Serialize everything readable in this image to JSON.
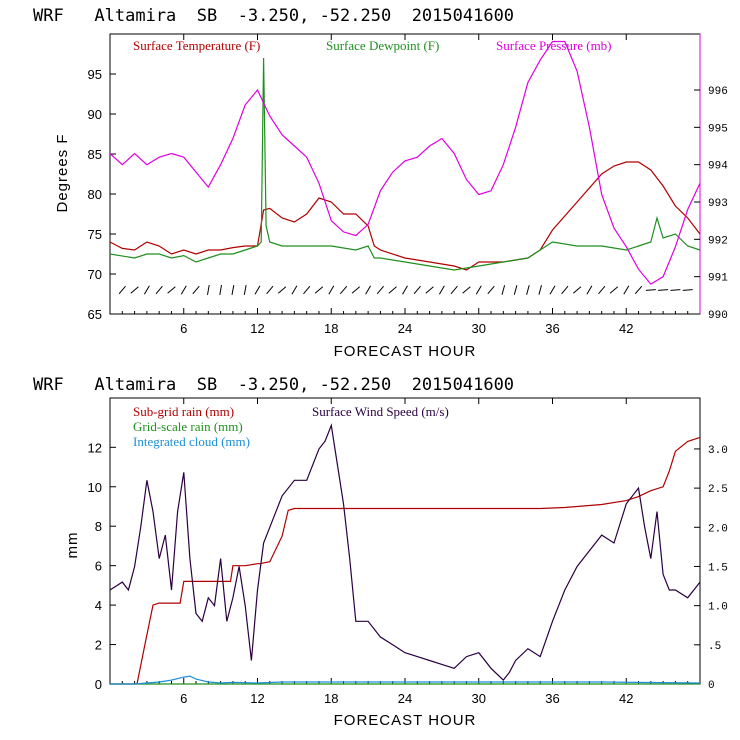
{
  "colors": {
    "temperature": "#b00000",
    "dewpoint": "#1f8f1f",
    "pressure": "#e000e0",
    "subgrid_rain": "#b00000",
    "gridscale_rain": "#1f8f1f",
    "cloud": "#1e8fd6",
    "wind": "#2a0040",
    "axis": "#000000"
  },
  "chart_data": [
    {
      "type": "line",
      "title": "WRF   Altamira  SB  -3.250, -52.250  2015041600",
      "xlabel": "FORECAST HOUR",
      "ylabel": "Degrees F",
      "xlim": [
        0,
        48
      ],
      "ylim": [
        65,
        100
      ],
      "y2lim": [
        990,
        997.5
      ],
      "xticks": [
        "6",
        "12",
        "18",
        "24",
        "30",
        "36",
        "42"
      ],
      "xtick_values": [
        6,
        12,
        18,
        24,
        30,
        36,
        42
      ],
      "yticks": [
        "65",
        "70",
        "75",
        "80",
        "85",
        "90",
        "95"
      ],
      "ytick_values": [
        65,
        70,
        75,
        80,
        85,
        90,
        95
      ],
      "y2ticks": [
        "990",
        "991",
        "992",
        "993",
        "994",
        "995",
        "996"
      ],
      "y2tick_values": [
        990,
        991,
        992,
        993,
        994,
        995,
        996
      ],
      "legend": [
        "Surface Temperature (F)",
        "Surface Dewpoint (F)",
        "Surface Pressure (mb)"
      ],
      "series": [
        {
          "name": "Surface Temperature (F)",
          "color_key": "temperature",
          "axis": "left",
          "x": [
            0,
            1,
            2,
            2.5,
            3,
            4,
            4.5,
            5,
            6,
            7,
            8,
            9,
            10,
            11,
            12,
            12.5,
            13,
            14,
            15,
            16,
            17,
            18,
            19,
            20,
            21,
            21.5,
            22,
            24,
            26,
            28,
            29,
            30,
            32,
            34,
            35,
            36,
            38,
            40,
            41,
            42,
            43,
            44,
            45,
            46,
            47,
            48
          ],
          "y": [
            74,
            73.2,
            73,
            73.5,
            74,
            73.5,
            73,
            72.5,
            73,
            72.5,
            73,
            73,
            73.3,
            73.5,
            73.5,
            78,
            78.2,
            77,
            76.5,
            77.5,
            79.5,
            79,
            77.5,
            77.5,
            76,
            73.5,
            73,
            72,
            71.5,
            71,
            70.5,
            71.5,
            71.5,
            72,
            73,
            75.5,
            79,
            82.5,
            83.5,
            84,
            84,
            83,
            81,
            78.5,
            77,
            75
          ]
        },
        {
          "name": "Surface Dewpoint (F)",
          "color_key": "dewpoint",
          "axis": "left",
          "x": [
            0,
            2,
            3,
            4,
            5,
            6,
            7,
            8,
            9,
            10,
            11,
            12,
            12.3,
            12.5,
            12.7,
            13,
            14,
            16,
            18,
            20,
            21,
            21.5,
            22,
            24,
            26,
            28,
            30,
            32,
            34,
            35,
            36,
            38,
            40,
            42,
            43,
            44,
            44.5,
            45,
            46,
            47,
            48
          ],
          "y": [
            72.5,
            72,
            72.5,
            72.5,
            72,
            72.3,
            71.5,
            72,
            72.5,
            72.5,
            73,
            73.5,
            74,
            97,
            76,
            74,
            73.5,
            73.5,
            73.5,
            73,
            73.5,
            72,
            72,
            71.5,
            71,
            70.5,
            71,
            71.5,
            72,
            73,
            74,
            73.5,
            73.5,
            73,
            73.5,
            74,
            77,
            74.5,
            75,
            73.5,
            73
          ]
        },
        {
          "name": "Surface Pressure (mb)",
          "color_key": "pressure",
          "axis": "right",
          "x": [
            0,
            1,
            2,
            3,
            4,
            5,
            6,
            7,
            8,
            9,
            10,
            11,
            12,
            13,
            14,
            15,
            16,
            17,
            18,
            19,
            20,
            21,
            22,
            23,
            24,
            25,
            26,
            27,
            28,
            29,
            30,
            31,
            32,
            33,
            34,
            35,
            36,
            37,
            38,
            39,
            40,
            41,
            42,
            43,
            44,
            45,
            46,
            47,
            48
          ],
          "y": [
            994.3,
            994,
            994.3,
            994,
            994.2,
            994.3,
            994.2,
            993.8,
            993.4,
            994,
            994.7,
            995.6,
            996,
            995.3,
            994.8,
            994.5,
            994.2,
            993.5,
            992.5,
            992.2,
            992.1,
            992.4,
            993.3,
            993.8,
            994.1,
            994.2,
            994.5,
            994.7,
            994.3,
            993.6,
            993.2,
            993.3,
            994,
            995,
            996.2,
            996.8,
            997.3,
            997.3,
            996.5,
            995,
            993.2,
            992.3,
            991.8,
            991.2,
            990.8,
            991,
            991.8,
            992.8,
            993.5
          ]
        }
      ],
      "wind_barbs": "surface wind barbs along bottom of temperature panel"
    },
    {
      "type": "line",
      "title": "WRF   Altamira  SB  -3.250, -52.250  2015041600",
      "xlabel": "FORECAST HOUR",
      "ylabel": "mm",
      "xlim": [
        0,
        48
      ],
      "ylim": [
        0,
        14.5
      ],
      "y2lim": [
        0,
        3.65
      ],
      "xticks": [
        "6",
        "12",
        "18",
        "24",
        "30",
        "36",
        "42"
      ],
      "xtick_values": [
        6,
        12,
        18,
        24,
        30,
        36,
        42
      ],
      "yticks": [
        "0",
        "2",
        "4",
        "6",
        "8",
        "10",
        "12"
      ],
      "ytick_values": [
        0,
        2,
        4,
        6,
        8,
        10,
        12
      ],
      "y2ticks": [
        "0",
        ".5",
        "1.0",
        "1.5",
        "2.0",
        "2.5",
        "3.0"
      ],
      "y2tick_values": [
        0,
        0.5,
        1.0,
        1.5,
        2.0,
        2.5,
        3.0
      ],
      "legend": [
        "Sub-grid rain (mm)",
        "Surface Wind Speed (m/s)",
        "Grid-scale rain (mm)",
        "Integrated cloud (mm)"
      ],
      "series": [
        {
          "name": "Sub-grid rain (mm)",
          "color_key": "subgrid_rain",
          "axis": "left",
          "x": [
            0,
            2.2,
            3,
            3.5,
            4,
            5,
            5.7,
            6,
            7,
            8,
            9,
            9.8,
            10,
            11,
            12,
            12.2,
            13,
            14,
            14.5,
            15,
            16,
            20,
            25,
            30,
            35,
            37,
            40,
            42,
            43,
            44,
            45,
            45.5,
            46,
            47,
            48
          ],
          "y": [
            0,
            0,
            2.5,
            4,
            4.1,
            4.1,
            4.1,
            5.2,
            5.2,
            5.2,
            5.2,
            5.2,
            6,
            6,
            6.1,
            6.1,
            6.2,
            7.5,
            8.8,
            8.9,
            8.9,
            8.9,
            8.9,
            8.9,
            8.9,
            8.95,
            9.1,
            9.3,
            9.5,
            9.8,
            10,
            10.8,
            11.8,
            12.3,
            12.5
          ]
        },
        {
          "name": "Grid-scale rain (mm)",
          "color_key": "gridscale_rain",
          "axis": "left",
          "x": [
            0,
            48
          ],
          "y": [
            0,
            0
          ]
        },
        {
          "name": "Integrated cloud (mm)",
          "color_key": "cloud",
          "axis": "left",
          "x": [
            0,
            2,
            3,
            4,
            5,
            6,
            6.5,
            7,
            8,
            9,
            10,
            12,
            14,
            20,
            30,
            40,
            48
          ],
          "y": [
            0,
            0,
            0.05,
            0.1,
            0.2,
            0.35,
            0.4,
            0.25,
            0.1,
            0.05,
            0.08,
            0.05,
            0.1,
            0.1,
            0.1,
            0.1,
            0.05
          ]
        },
        {
          "name": "Surface Wind Speed (m/s)",
          "color_key": "wind",
          "axis": "right",
          "x": [
            0,
            1,
            1.5,
            2,
            2.5,
            3,
            3.5,
            4,
            4.5,
            5,
            5.5,
            6,
            6.5,
            7,
            7.5,
            8,
            8.5,
            9,
            9.5,
            10,
            10.5,
            11,
            11.5,
            12,
            12.5,
            13,
            14,
            15,
            16,
            17,
            17.5,
            18,
            18.5,
            19,
            19.5,
            20,
            21,
            22,
            23,
            24,
            25,
            26,
            27,
            28,
            29,
            30,
            31,
            32,
            32.5,
            33,
            34,
            35,
            36,
            37,
            38,
            39,
            40,
            41,
            42,
            43,
            43.5,
            44,
            44.5,
            45,
            45.5,
            46,
            47,
            48
          ],
          "y": [
            1.2,
            1.3,
            1.2,
            1.5,
            2.0,
            2.6,
            2.2,
            1.6,
            1.9,
            1.2,
            2.2,
            2.7,
            1.6,
            0.9,
            0.8,
            1.1,
            1.0,
            1.6,
            0.8,
            1.1,
            1.5,
            1.0,
            0.3,
            1.2,
            1.8,
            2.0,
            2.4,
            2.6,
            2.6,
            3.0,
            3.1,
            3.3,
            2.8,
            2.3,
            1.6,
            0.8,
            0.8,
            0.6,
            0.5,
            0.4,
            0.35,
            0.3,
            0.25,
            0.2,
            0.35,
            0.4,
            0.2,
            0.05,
            0.15,
            0.3,
            0.45,
            0.35,
            0.8,
            1.2,
            1.5,
            1.7,
            1.9,
            1.8,
            2.3,
            2.5,
            2.0,
            1.6,
            2.2,
            1.4,
            1.2,
            1.2,
            1.1,
            1.3
          ]
        }
      ]
    }
  ]
}
